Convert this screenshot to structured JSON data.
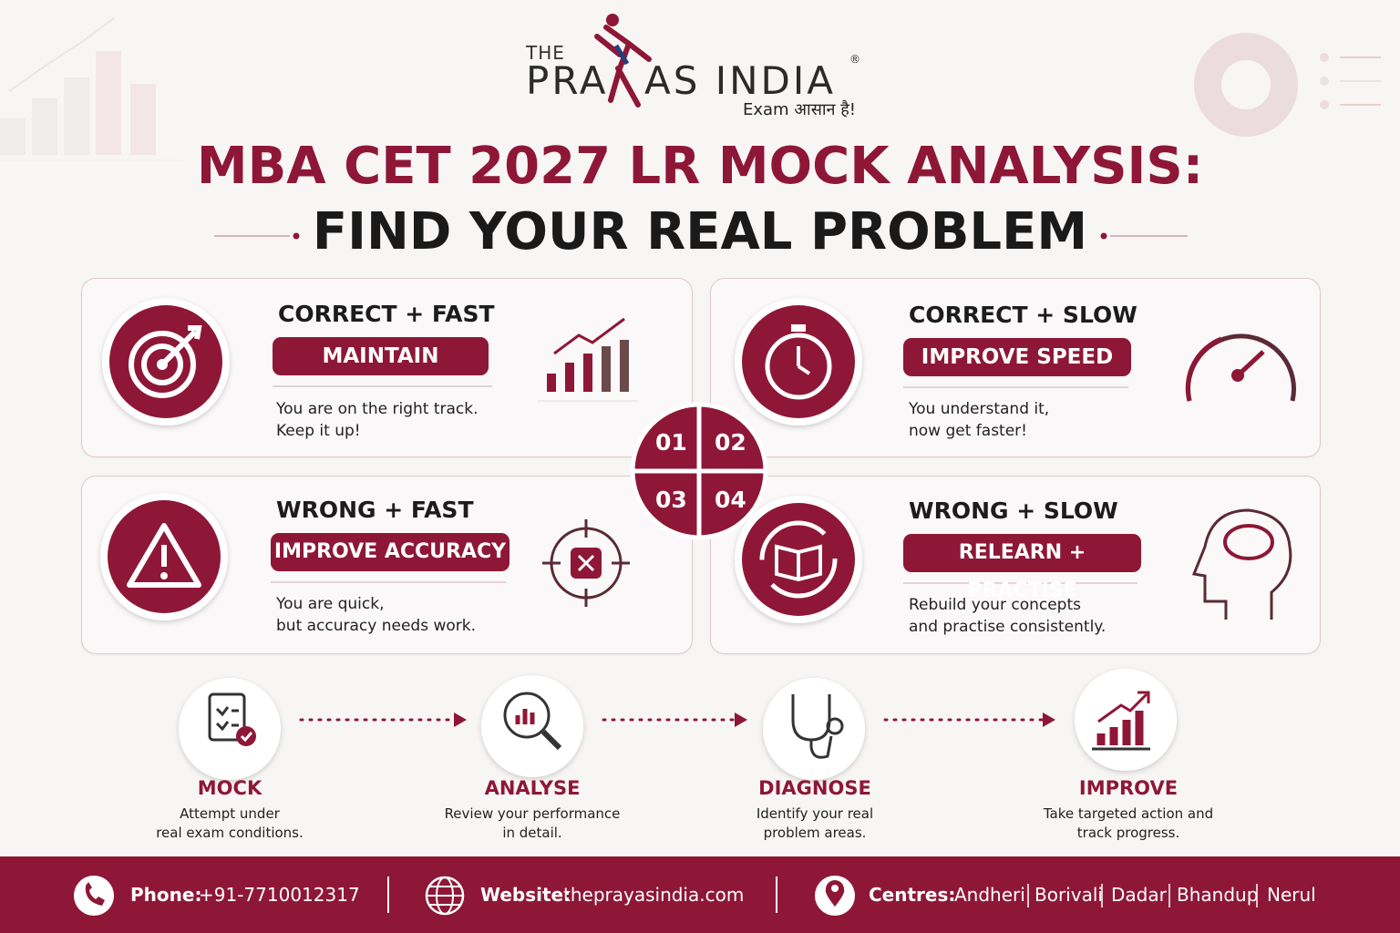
{
  "logo": {
    "prefix": "THE",
    "name_start": "PRA",
    "name_end": "AS INDIA",
    "mark": "®",
    "tagline": "Exam आसान है!"
  },
  "header": {
    "title": "MBA CET 2027 LR MOCK ANALYSIS:",
    "subtitle": "FIND YOUR REAL PROBLEM"
  },
  "quadrants": [
    {
      "number": "01",
      "heading": "CORRECT + FAST",
      "action": "MAINTAIN",
      "description": [
        "You are on the right track.",
        "Keep it up!"
      ]
    },
    {
      "number": "02",
      "heading": "CORRECT + SLOW",
      "action": "IMPROVE SPEED",
      "description": [
        "You understand it,",
        "now get faster!"
      ]
    },
    {
      "number": "03",
      "heading": "WRONG + FAST",
      "action": "IMPROVE ACCURACY",
      "description": [
        "You are quick,",
        "but accuracy needs work."
      ]
    },
    {
      "number": "04",
      "heading": "WRONG + SLOW",
      "action": "RELEARN + PRACTISE",
      "description": [
        "Rebuild your concepts",
        "and practise consistently."
      ]
    }
  ],
  "steps": [
    {
      "title": "MOCK",
      "description": [
        "Attempt under",
        "real exam conditions."
      ]
    },
    {
      "title": "ANALYSE",
      "description": [
        "Review your performance",
        "in detail."
      ]
    },
    {
      "title": "DIAGNOSE",
      "description": [
        "Identify your real",
        "problem areas."
      ]
    },
    {
      "title": "IMPROVE",
      "description": [
        "Take targeted action and",
        "track progress."
      ]
    }
  ],
  "footer": {
    "phone": {
      "label": "Phone:",
      "value": "+91-7710012317"
    },
    "website": {
      "label": "Website:",
      "value": "theprayasindia.com"
    },
    "centres": {
      "label": "Centres:",
      "list": [
        "Andheri",
        "Borivali",
        "Dadar",
        "Bhandup",
        "Nerul"
      ]
    }
  }
}
